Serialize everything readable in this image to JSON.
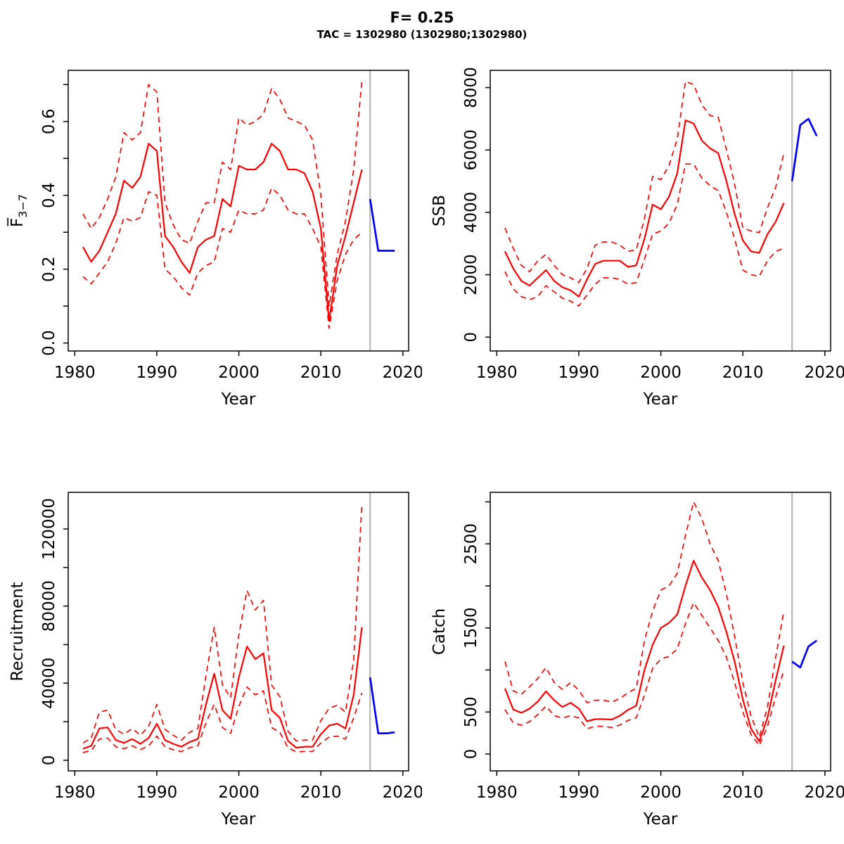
{
  "header": {
    "title": "F= 0.25",
    "subtitle": "TAC = 1302980 (1302980;1302980)"
  },
  "colors": {
    "median_line": "#ff0000",
    "interval_line": "#ff0000",
    "forecast_line": "#0000ff",
    "divider_line": "#bebebe",
    "axis": "#000000",
    "background": "#ffffff"
  },
  "chart_data": [
    {
      "id": "fbar",
      "type": "line",
      "title": "",
      "xlabel": "Year",
      "ylabel": "Fbar_3-7",
      "ylabel_math": "fbar",
      "legend": "none",
      "grid": false,
      "xlim": [
        1979.2,
        2020.7
      ],
      "ylim": [
        -0.0215,
        0.7385
      ],
      "x_ticks": [
        {
          "v": 1980,
          "label": "1980"
        },
        {
          "v": 1990,
          "label": "1990"
        },
        {
          "v": 2000,
          "label": "2000"
        },
        {
          "v": 2010,
          "label": "2010"
        },
        {
          "v": 2020,
          "label": "2020"
        }
      ],
      "y_ticks": [
        {
          "v": 0.0,
          "label": "0.0"
        },
        {
          "v": 0.1,
          "label": ""
        },
        {
          "v": 0.2,
          "label": "0.2"
        },
        {
          "v": 0.3,
          "label": ""
        },
        {
          "v": 0.4,
          "label": "0.4"
        },
        {
          "v": 0.5,
          "label": ""
        },
        {
          "v": 0.6,
          "label": "0.6"
        },
        {
          "v": 0.7,
          "label": ""
        }
      ],
      "divider_x": 2016,
      "years": [
        1981,
        1982,
        1983,
        1984,
        1985,
        1986,
        1987,
        1988,
        1989,
        1990,
        1991,
        1992,
        1993,
        1994,
        1995,
        1996,
        1997,
        1998,
        1999,
        2000,
        2001,
        2002,
        2003,
        2004,
        2005,
        2006,
        2007,
        2008,
        2009,
        2010,
        2011,
        2012,
        2013,
        2014,
        2015
      ],
      "series": [
        {
          "name": "median",
          "style": "solid",
          "color_key": "median_line",
          "values": [
            0.26,
            0.22,
            0.25,
            0.3,
            0.35,
            0.44,
            0.42,
            0.45,
            0.54,
            0.52,
            0.29,
            0.26,
            0.22,
            0.19,
            0.26,
            0.28,
            0.29,
            0.39,
            0.37,
            0.48,
            0.47,
            0.47,
            0.49,
            0.54,
            0.52,
            0.47,
            0.47,
            0.46,
            0.41,
            0.31,
            0.06,
            0.21,
            0.29,
            0.38,
            0.47
          ]
        },
        {
          "name": "lower",
          "style": "dashed",
          "color_key": "interval_line",
          "values": [
            0.18,
            0.16,
            0.19,
            0.22,
            0.27,
            0.34,
            0.33,
            0.34,
            0.41,
            0.4,
            0.2,
            0.18,
            0.15,
            0.13,
            0.19,
            0.21,
            0.22,
            0.31,
            0.3,
            0.36,
            0.35,
            0.35,
            0.36,
            0.42,
            0.4,
            0.36,
            0.35,
            0.35,
            0.31,
            0.26,
            0.04,
            0.17,
            0.24,
            0.28,
            0.3
          ]
        },
        {
          "name": "upper",
          "style": "dashed",
          "color_key": "interval_line",
          "values": [
            0.35,
            0.31,
            0.34,
            0.39,
            0.45,
            0.57,
            0.55,
            0.57,
            0.7,
            0.68,
            0.38,
            0.32,
            0.28,
            0.27,
            0.33,
            0.38,
            0.38,
            0.49,
            0.47,
            0.61,
            0.59,
            0.6,
            0.62,
            0.69,
            0.66,
            0.61,
            0.6,
            0.59,
            0.55,
            0.4,
            0.1,
            0.24,
            0.33,
            0.47,
            0.71
          ]
        },
        {
          "name": "forecast",
          "style": "solid",
          "color_key": "forecast_line",
          "x": [
            2016,
            2017,
            2018,
            2019
          ],
          "values": [
            0.39,
            0.25,
            0.25,
            0.25
          ]
        }
      ]
    },
    {
      "id": "ssb",
      "type": "line",
      "title": "",
      "xlabel": "Year",
      "ylabel": "SSB",
      "legend": "none",
      "grid": false,
      "xlim": [
        1979.2,
        2020.7
      ],
      "ylim": [
        -444,
        8553
      ],
      "x_ticks": [
        {
          "v": 1980,
          "label": "1980"
        },
        {
          "v": 1990,
          "label": "1990"
        },
        {
          "v": 2000,
          "label": "2000"
        },
        {
          "v": 2010,
          "label": "2010"
        },
        {
          "v": 2020,
          "label": "2020"
        }
      ],
      "y_ticks": [
        {
          "v": 0,
          "label": "0"
        },
        {
          "v": 2000,
          "label": "2000"
        },
        {
          "v": 4000,
          "label": "4000"
        },
        {
          "v": 6000,
          "label": "6000"
        },
        {
          "v": 8000,
          "label": "8000"
        }
      ],
      "divider_x": 2016,
      "years": [
        1981,
        1982,
        1983,
        1984,
        1985,
        1986,
        1987,
        1988,
        1989,
        1990,
        1991,
        1992,
        1993,
        1994,
        1995,
        1996,
        1997,
        1998,
        1999,
        2000,
        2001,
        2002,
        2003,
        2004,
        2005,
        2006,
        2007,
        2008,
        2009,
        2010,
        2011,
        2012,
        2013,
        2014,
        2015
      ],
      "series": [
        {
          "name": "median",
          "style": "solid",
          "color_key": "median_line",
          "values": [
            2750,
            2200,
            1800,
            1650,
            1900,
            2150,
            1800,
            1600,
            1500,
            1300,
            1850,
            2350,
            2450,
            2450,
            2450,
            2250,
            2300,
            3150,
            4250,
            4100,
            4500,
            5250,
            6950,
            6850,
            6300,
            6050,
            5900,
            5000,
            3950,
            3100,
            2750,
            2700,
            3300,
            3700,
            4300
          ]
        },
        {
          "name": "lower",
          "style": "dashed",
          "color_key": "interval_line",
          "values": [
            2100,
            1550,
            1300,
            1200,
            1300,
            1650,
            1450,
            1250,
            1150,
            1000,
            1350,
            1700,
            1900,
            1900,
            1850,
            1700,
            1750,
            2500,
            3300,
            3400,
            3650,
            4250,
            5550,
            5550,
            5100,
            4850,
            4700,
            4000,
            3150,
            2150,
            2000,
            1950,
            2450,
            2750,
            2850
          ]
        },
        {
          "name": "upper",
          "style": "dashed",
          "color_key": "interval_line",
          "values": [
            3500,
            2850,
            2300,
            2100,
            2450,
            2650,
            2300,
            2000,
            1900,
            1750,
            2200,
            2950,
            3050,
            3050,
            2950,
            2750,
            2800,
            3800,
            5150,
            5050,
            5500,
            6350,
            8200,
            8100,
            7450,
            7100,
            7050,
            6000,
            4900,
            3500,
            3400,
            3350,
            4150,
            4800,
            5900
          ]
        },
        {
          "name": "forecast",
          "style": "solid",
          "color_key": "forecast_line",
          "x": [
            2016,
            2017,
            2018,
            2019
          ],
          "values": [
            5000,
            6800,
            7000,
            6450
          ]
        }
      ]
    },
    {
      "id": "recruitment",
      "type": "line",
      "title": "",
      "xlabel": "Year",
      "ylabel": "Recruitment",
      "legend": "none",
      "grid": false,
      "xlim": [
        1979.2,
        2020.7
      ],
      "ylim": [
        -5500,
        139000
      ],
      "x_ticks": [
        {
          "v": 1980,
          "label": "1980"
        },
        {
          "v": 1990,
          "label": "1990"
        },
        {
          "v": 2000,
          "label": "2000"
        },
        {
          "v": 2010,
          "label": "2010"
        },
        {
          "v": 2020,
          "label": "2020"
        }
      ],
      "y_ticks": [
        {
          "v": 0,
          "label": "0"
        },
        {
          "v": 20000,
          "label": ""
        },
        {
          "v": 40000,
          "label": "40000"
        },
        {
          "v": 60000,
          "label": ""
        },
        {
          "v": 80000,
          "label": "80000"
        },
        {
          "v": 100000,
          "label": ""
        },
        {
          "v": 120000,
          "label": "120000"
        }
      ],
      "divider_x": 2016,
      "years": [
        1981,
        1982,
        1983,
        1984,
        1985,
        1986,
        1987,
        1988,
        1989,
        1990,
        1991,
        1992,
        1993,
        1994,
        1995,
        1996,
        1997,
        1998,
        1999,
        2000,
        2001,
        2002,
        2003,
        2004,
        2005,
        2006,
        2007,
        2008,
        2009,
        2010,
        2011,
        2012,
        2013,
        2014,
        2015
      ],
      "series": [
        {
          "name": "median",
          "style": "solid",
          "color_key": "median_line",
          "values": [
            6000,
            7500,
            16500,
            17000,
            10500,
            9000,
            11000,
            8500,
            11500,
            19000,
            10500,
            8500,
            7000,
            9500,
            11000,
            29000,
            45000,
            26000,
            21500,
            43000,
            59000,
            52500,
            55500,
            26000,
            22000,
            10000,
            6500,
            7000,
            7000,
            13500,
            18000,
            19000,
            16500,
            34000,
            69000
          ]
        },
        {
          "name": "lower",
          "style": "dashed",
          "color_key": "interval_line",
          "values": [
            4000,
            5000,
            11000,
            11500,
            7000,
            6000,
            7500,
            5500,
            7500,
            12500,
            7000,
            5500,
            4500,
            6500,
            7500,
            19500,
            29000,
            17000,
            14000,
            28000,
            38000,
            34000,
            36000,
            17000,
            14500,
            6500,
            4300,
            4600,
            4600,
            9000,
            12000,
            12500,
            11000,
            22000,
            35000
          ]
        },
        {
          "name": "upper",
          "style": "dashed",
          "color_key": "interval_line",
          "values": [
            9000,
            11500,
            25000,
            26000,
            16000,
            13500,
            16500,
            13000,
            17500,
            29000,
            16000,
            13000,
            10500,
            14500,
            16500,
            44000,
            69000,
            39000,
            32500,
            65000,
            88000,
            78000,
            83000,
            39000,
            33000,
            15000,
            10000,
            10500,
            10500,
            20500,
            27000,
            28500,
            25000,
            52000,
            133000
          ]
        },
        {
          "name": "forecast",
          "style": "solid",
          "color_key": "forecast_line",
          "x": [
            2016,
            2017,
            2018,
            2019
          ],
          "values": [
            43000,
            14000,
            14000,
            14500
          ]
        }
      ]
    },
    {
      "id": "catch",
      "type": "line",
      "title": "",
      "xlabel": "Year",
      "ylabel": "Catch",
      "legend": "none",
      "grid": false,
      "xlim": [
        1979.2,
        2020.7
      ],
      "ylim": [
        -200,
        3113
      ],
      "x_ticks": [
        {
          "v": 1980,
          "label": "1980"
        },
        {
          "v": 1990,
          "label": "1990"
        },
        {
          "v": 2000,
          "label": "2000"
        },
        {
          "v": 2010,
          "label": "2010"
        },
        {
          "v": 2020,
          "label": "2020"
        }
      ],
      "y_ticks": [
        {
          "v": 0,
          "label": "0"
        },
        {
          "v": 500,
          "label": "500"
        },
        {
          "v": 1000,
          "label": ""
        },
        {
          "v": 1500,
          "label": "1500"
        },
        {
          "v": 2000,
          "label": ""
        },
        {
          "v": 2500,
          "label": "2500"
        },
        {
          "v": 3000,
          "label": ""
        }
      ],
      "divider_x": 2016,
      "years": [
        1981,
        1982,
        1983,
        1984,
        1985,
        1986,
        1987,
        1988,
        1989,
        1990,
        1991,
        1992,
        1993,
        1994,
        1995,
        1996,
        1997,
        1998,
        1999,
        2000,
        2001,
        2002,
        2003,
        2004,
        2005,
        2006,
        2007,
        2008,
        2009,
        2010,
        2011,
        2012,
        2013,
        2014,
        2015
      ],
      "series": [
        {
          "name": "median",
          "style": "solid",
          "color_key": "median_line",
          "values": [
            780,
            530,
            490,
            540,
            625,
            745,
            640,
            560,
            610,
            540,
            390,
            415,
            415,
            410,
            455,
            525,
            575,
            1000,
            1300,
            1500,
            1560,
            1660,
            2000,
            2300,
            2100,
            1950,
            1750,
            1450,
            1100,
            650,
            300,
            150,
            430,
            880,
            1290
          ]
        },
        {
          "name": "lower",
          "style": "dashed",
          "color_key": "interval_line",
          "values": [
            530,
            370,
            345,
            385,
            470,
            570,
            455,
            430,
            455,
            430,
            300,
            330,
            330,
            315,
            345,
            400,
            430,
            700,
            1020,
            1130,
            1160,
            1250,
            1550,
            1800,
            1650,
            1500,
            1350,
            1150,
            850,
            500,
            230,
            100,
            330,
            680,
            1000
          ]
        },
        {
          "name": "upper",
          "style": "dashed",
          "color_key": "interval_line",
          "values": [
            1100,
            750,
            710,
            800,
            900,
            1030,
            850,
            770,
            850,
            760,
            610,
            640,
            640,
            620,
            660,
            730,
            780,
            1350,
            1700,
            1950,
            2000,
            2150,
            2600,
            3000,
            2800,
            2500,
            2300,
            1900,
            1400,
            850,
            450,
            200,
            560,
            1150,
            1700
          ]
        },
        {
          "name": "forecast",
          "style": "solid",
          "color_key": "forecast_line",
          "x": [
            2016,
            2017,
            2018,
            2019
          ],
          "values": [
            1100,
            1030,
            1280,
            1350
          ]
        }
      ]
    }
  ]
}
